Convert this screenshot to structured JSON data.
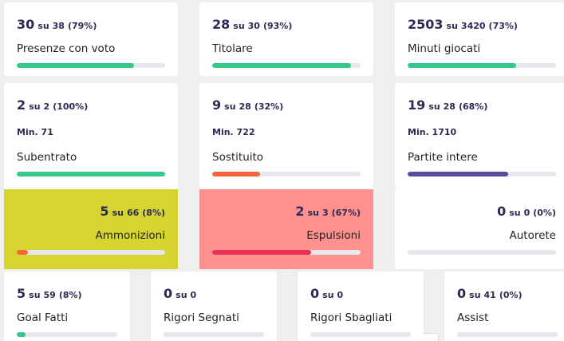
{
  "rows": [
    [
      {
        "value": 30,
        "of": "su",
        "total": 38,
        "percent": "(79%)",
        "label": "Presenze con voto",
        "color": "#34c98b"
      },
      {
        "value": 28,
        "of": "su",
        "total": 30,
        "percent": "(93%)",
        "label": "Titolare",
        "color": "#34c98b"
      },
      {
        "value": 2503,
        "of": "su",
        "total": 3420,
        "percent": "(73%)",
        "label": "Minuti giocati",
        "color": "#34c98b"
      }
    ],
    [
      {
        "value": 2,
        "of": "su",
        "total": 2,
        "percent": "(100%)",
        "min": "Min. 71",
        "label": "Subentrato",
        "color": "#34c98b"
      },
      {
        "value": 9,
        "of": "su",
        "total": 28,
        "percent": "(32%)",
        "min": "Min. 722",
        "label": "Sostituito",
        "color": "#f2643c"
      },
      {
        "value": 19,
        "of": "su",
        "total": 28,
        "percent": "(68%)",
        "min": "Min. 1710",
        "label": "Partite intere",
        "color": "#5a4a9f"
      }
    ],
    [
      {
        "value": 5,
        "of": "su",
        "total": 66,
        "percent": "(8%)",
        "label": "Ammonizioni",
        "color": "#f5682f",
        "background": "#d6d52f"
      },
      {
        "value": 2,
        "of": "su",
        "total": 3,
        "percent": "(67%)",
        "label": "Espulsioni",
        "color": "#e8345a",
        "background": "#fe9090"
      },
      {
        "value": 0,
        "of": "su",
        "total": 0,
        "percent": "(0%)",
        "label": "Autorete",
        "color": "#34c98b"
      }
    ],
    [
      {
        "value": 5,
        "of": "su",
        "total": 59,
        "percent": "(8%)",
        "label": "Goal Fatti",
        "color": "#34c98b"
      },
      {
        "value": 0,
        "of": "su",
        "total": 0,
        "label": "Rigori Segnati",
        "color": "#34c98b"
      },
      {
        "value": 0,
        "of": "su",
        "total": 0,
        "label": "Rigori Sbagliati",
        "color": "#34c98b"
      },
      {
        "value": 0,
        "of": "su",
        "total": 41,
        "percent": "(0%)",
        "label": "Assist",
        "color": "#34c98b"
      }
    ]
  ]
}
